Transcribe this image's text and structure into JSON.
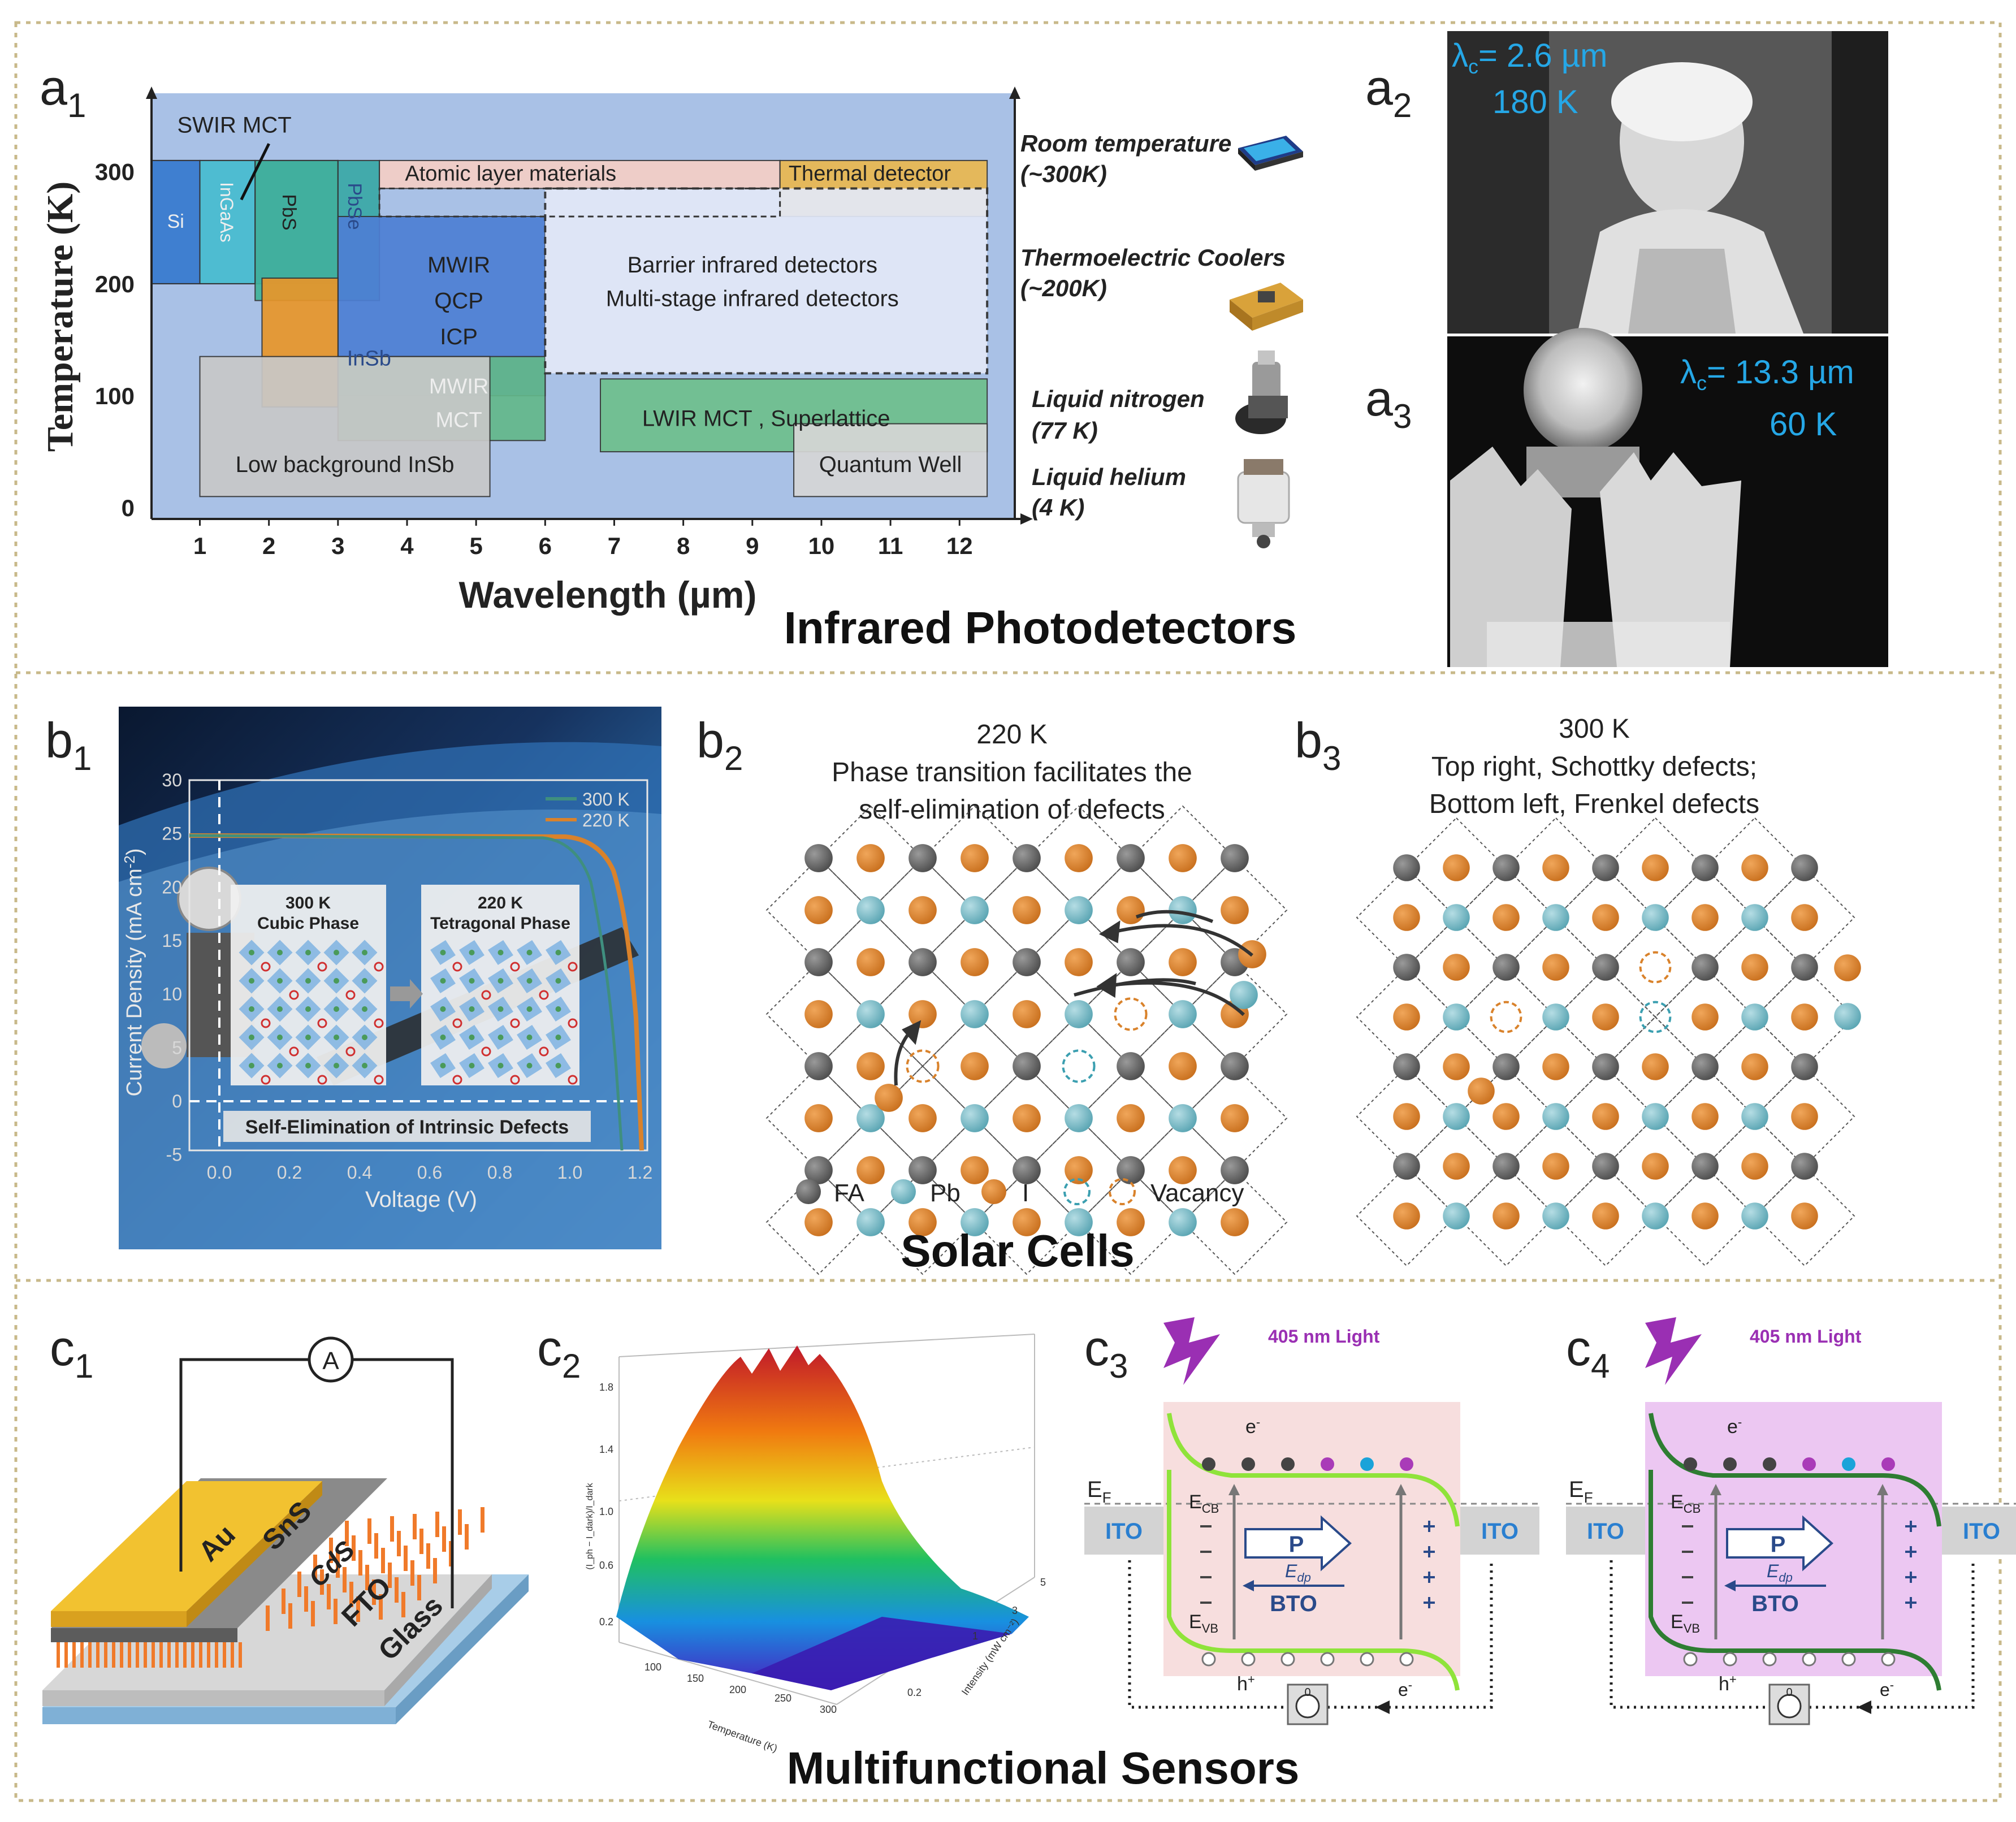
{
  "figure": {
    "section_a_title": "Infrared Photodetectors",
    "section_b_title": "Solar Cells",
    "section_c_title": "Multifunctional Sensors"
  },
  "panel_labels": {
    "a1": "a",
    "a1_sub": "1",
    "a2": "a",
    "a2_sub": "2",
    "a3": "a",
    "a3_sub": "3",
    "b1": "b",
    "b1_sub": "1",
    "b2": "b",
    "b2_sub": "2",
    "b3": "b",
    "b3_sub": "3",
    "c1": "c",
    "c1_sub": "1",
    "c2": "c",
    "c2_sub": "2",
    "c3": "c",
    "c3_sub": "3",
    "c4": "c",
    "c4_sub": "4"
  },
  "chart_data": {
    "type": "range-map",
    "title": "",
    "xlabel": "Wavelength (µm)",
    "ylabel": "Temperature (K)",
    "xlim": [
      0.3,
      12.8
    ],
    "ylim": [
      -10,
      370
    ],
    "xticks": [
      1,
      2,
      3,
      4,
      5,
      6,
      7,
      8,
      9,
      10,
      11,
      12
    ],
    "yticks": [
      0,
      100,
      200,
      300
    ],
    "regions": [
      {
        "name": "SWIR MCT",
        "label": "SWIR MCT",
        "x": [
          0.3,
          3.0
        ],
        "y": [
          200,
          310
        ],
        "color": "#3f7fd0"
      },
      {
        "name": "Si",
        "label": "Si",
        "x": [
          0.3,
          1.0
        ],
        "y": [
          200,
          310
        ],
        "color": "#3f7fd0"
      },
      {
        "name": "InGaAs",
        "label": "InGaAs",
        "x": [
          1.0,
          1.8
        ],
        "y": [
          200,
          310
        ],
        "color": "#4fc1d2"
      },
      {
        "name": "PbS",
        "label": "PbS",
        "x": [
          1.8,
          3.0
        ],
        "y": [
          185,
          310
        ],
        "color": "#41b39a"
      },
      {
        "name": "PbSe",
        "label": "PbSe",
        "x": [
          3.0,
          3.6
        ],
        "y": [
          185,
          310
        ],
        "color": "#3aa9a6"
      },
      {
        "name": "Atomic layer materials",
        "label": "Atomic layer materials",
        "x": [
          3.6,
          9.4
        ],
        "y": [
          285,
          310
        ],
        "color": "#f4cfc6"
      },
      {
        "name": "Thermal detector",
        "label": "Thermal detector",
        "label2": "",
        "x": [
          9.4,
          12.4
        ],
        "y": [
          260,
          310
        ],
        "color": "#e9b850"
      },
      {
        "name": "MWIR QCP ICP",
        "label": "MWIR",
        "label_b": "QCP",
        "label_c": "ICP",
        "x": [
          3.0,
          6.0
        ],
        "y": [
          100,
          260
        ],
        "color": "#4d7fd4"
      },
      {
        "name": "InSb",
        "label": "InSb",
        "x": [
          1.9,
          3.0
        ],
        "y": [
          90,
          205
        ],
        "color": "#e8962a"
      },
      {
        "name": "MWIR MCT",
        "label": "MWIR",
        "label_b": "MCT",
        "x": [
          3.0,
          6.0
        ],
        "y": [
          60,
          135
        ],
        "color": "#63b88a"
      },
      {
        "name": "Barrier infrared detectors",
        "label": "Barrier infrared detectors",
        "label_b": "Multi-stage infrared detectors",
        "x": [
          6.0,
          12.4
        ],
        "y": [
          120,
          285
        ],
        "color": "#e3e9f8"
      },
      {
        "name": "LWIR MCT, Superlattice",
        "label": "LWIR  MCT , Superlattice",
        "x": [
          6.8,
          12.4
        ],
        "y": [
          50,
          115
        ],
        "color": "#6ebf8c"
      },
      {
        "name": "Quantum Well",
        "label": "Quantum Well",
        "x": [
          9.6,
          12.4
        ],
        "y": [
          10,
          75
        ],
        "color": "#d6d6d6"
      },
      {
        "name": "Low background InSb",
        "label": "Low background InSb",
        "x": [
          1.0,
          5.2
        ],
        "y": [
          10,
          135
        ],
        "color": "#c8c8c8"
      }
    ],
    "cooling": [
      {
        "label": "Room temperature",
        "label_b": "(~300K)"
      },
      {
        "label": "Thermoelectric Coolers",
        "label_b": "(~200K)"
      },
      {
        "label": "Liquid nitrogen",
        "label_b": "(77 K)"
      },
      {
        "label": "Liquid helium",
        "label_b": "(4 K)"
      }
    ]
  },
  "a2": {
    "lambda_prefix": "λ",
    "lambda_sub": "c",
    "lambda_value": "= 2.6 µm",
    "temp": "180 K"
  },
  "a3": {
    "lambda_prefix": "λ",
    "lambda_sub": "c",
    "lambda_value": "= 13.3 µm",
    "temp": "60 K"
  },
  "b1": {
    "xlabel": "Voltage (V)",
    "ylabel": "Current Density (mA cm",
    "ylabel_sup": "-2",
    "ylabel_end": ")",
    "xticks": [
      "0.0",
      "0.2",
      "0.4",
      "0.6",
      "0.8",
      "1.0",
      "1.2"
    ],
    "yticks": [
      "-5",
      "0",
      "5",
      "10",
      "15",
      "20",
      "25",
      "30"
    ],
    "legend": [
      "300 K",
      "220 K"
    ],
    "phase1_title": "300 K",
    "phase1_sub": "Cubic Phase",
    "phase2_title": "220 K",
    "phase2_sub": "Tetragonal Phase",
    "banner": "Self-Elimination of Intrinsic Defects"
  },
  "b2": {
    "line1": "220 K",
    "line2": "Phase transition facilitates the",
    "line3": "self-elimination  of defects"
  },
  "b3": {
    "line1": "300 K",
    "line2": "Top  right, Schottky defects;",
    "line3": "Bottom  left,  Frenkel defects"
  },
  "legend_lattice": {
    "fa": "FA",
    "pb": "Pb",
    "i": "I",
    "vac": "Vacancy"
  },
  "c1": {
    "ammeter": "A",
    "au": "Au",
    "sns": "SnS",
    "cds": "CdS",
    "fto": "FTO",
    "glass": "Glass"
  },
  "c2": {
    "xlabel": "Temperature (K)",
    "ylabel": "Intensity (mW cm⁻²)",
    "zlabel": "(I_ph − I_dark)/I_dark",
    "zticks": [
      "0.2",
      "0.6",
      "1.0",
      "1.4",
      "1.8"
    ],
    "xticks": [
      "100",
      "150",
      "200",
      "250",
      "300"
    ],
    "yticks": [
      "0.2",
      "1",
      "3",
      "5"
    ]
  },
  "c3": {
    "light": "405 nm Light",
    "ecb": "E",
    "ecb_sub": "CB",
    "evb": "E",
    "evb_sub": "VB",
    "ef": "E",
    "ef_sub": "F",
    "ito": "ITO",
    "p": "P",
    "edp": "E",
    "edp_sub": "dp",
    "bto": "BTO",
    "e_minus": "e",
    "h_plus": "h",
    "ammeter": "0"
  },
  "c4": {
    "light": "405 nm Light",
    "ecb": "E",
    "ecb_sub": "CB",
    "evb": "E",
    "evb_sub": "VB",
    "ef": "E",
    "ef_sub": "F",
    "ito": "ITO",
    "p": "P",
    "edp": "E",
    "edp_sub": "dp",
    "bto": "BTO",
    "e_minus": "e",
    "h_plus": "h",
    "ammeter": "0"
  },
  "colors": {
    "border": "#c8b98a",
    "cyan": "#25a7e6",
    "purple": "#9a2fb3",
    "orange": "#d9822b"
  }
}
